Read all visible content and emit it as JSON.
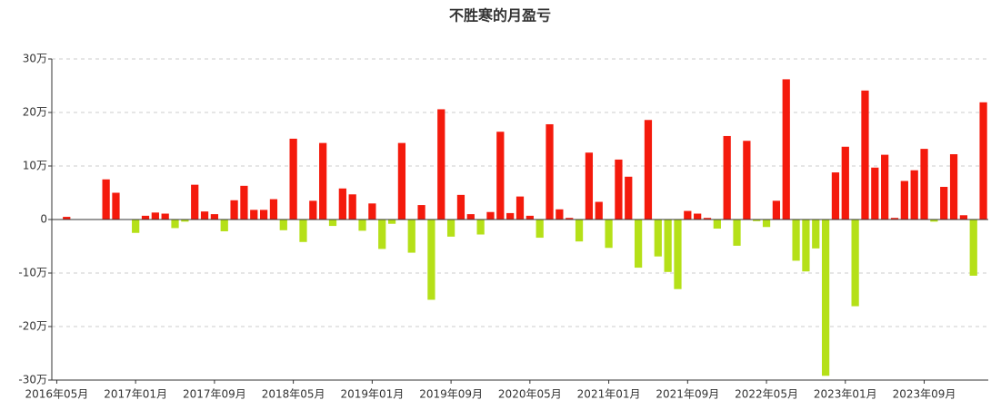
{
  "chart_data": {
    "type": "bar",
    "title": "不胜寒的月盈亏",
    "categories": [
      "2016年05月",
      null,
      null,
      null,
      null,
      null,
      null,
      null,
      "2017年01月",
      null,
      null,
      null,
      null,
      null,
      null,
      null,
      "2017年09月",
      null,
      null,
      null,
      null,
      null,
      null,
      null,
      "2018年05月",
      null,
      null,
      null,
      null,
      null,
      null,
      null,
      "2019年01月",
      null,
      null,
      null,
      null,
      null,
      null,
      null,
      "2019年09月",
      null,
      null,
      null,
      null,
      null,
      null,
      null,
      "2020年05月",
      null,
      null,
      null,
      null,
      null,
      null,
      null,
      "2021年01月",
      null,
      null,
      null,
      null,
      null,
      null,
      null,
      "2021年09月",
      null,
      null,
      null,
      null,
      null,
      null,
      null,
      "2022年05月",
      null,
      null,
      null,
      null,
      null,
      null,
      null,
      "2023年01月",
      null,
      null,
      null,
      null,
      null,
      null,
      null,
      "2023年09月",
      null,
      null,
      null,
      null,
      null,
      null
    ],
    "values": [
      0,
      0.5,
      0,
      0,
      0,
      7.5,
      5,
      0,
      -2.5,
      0.7,
      1.3,
      1.1,
      -1.6,
      -0.4,
      6.5,
      1.5,
      1,
      -2.2,
      3.6,
      6.3,
      1.8,
      1.8,
      3.8,
      -2,
      15.1,
      -4.2,
      3.5,
      14.3,
      -1.2,
      5.8,
      4.7,
      -2.1,
      3,
      -5.5,
      -0.8,
      14.3,
      -6.2,
      2.7,
      -15,
      20.6,
      -3.2,
      4.6,
      1,
      -2.8,
      1.4,
      16.4,
      1.2,
      4.3,
      0.7,
      -3.4,
      17.8,
      1.9,
      0.3,
      -4.1,
      12.5,
      3.3,
      -5.3,
      11.2,
      8,
      -9,
      18.6,
      -6.9,
      -9.8,
      -13,
      1.6,
      1.1,
      0.3,
      -1.7,
      15.6,
      -4.9,
      14.7,
      -0.3,
      -1.4,
      3.5,
      26.2,
      -7.7,
      -9.7,
      -5.4,
      -29.2,
      8.8,
      13.6,
      -16.2,
      24.1,
      9.7,
      12.1,
      0.3,
      7.2,
      9.2,
      13.2,
      -0.4,
      6.1,
      12.2,
      0.8,
      -10.5,
      21.9
    ],
    "positive_color": "#f41a0c",
    "negative_color": "#b5e018",
    "ylim": [
      -30,
      30
    ],
    "yticks": [
      {
        "value": -30,
        "label": "-30万"
      },
      {
        "value": -20,
        "label": "-20万"
      },
      {
        "value": -10,
        "label": "-10万"
      },
      {
        "value": 0,
        "label": "0"
      },
      {
        "value": 10,
        "label": "10万"
      },
      {
        "value": 20,
        "label": "20万"
      },
      {
        "value": 30,
        "label": "30万"
      }
    ],
    "grid": true
  }
}
